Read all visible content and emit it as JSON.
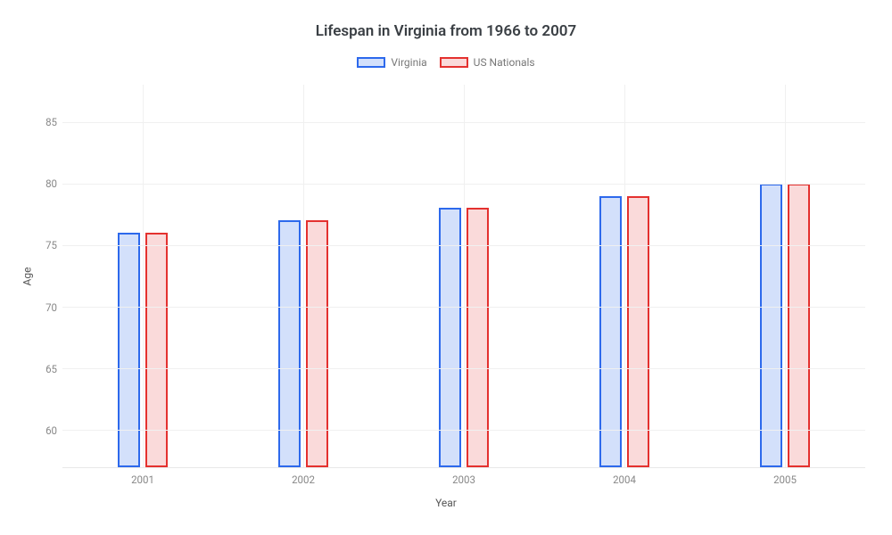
{
  "chart": {
    "type": "bar",
    "title": "Lifespan in Virginia from 1966 to 2007",
    "title_fontsize": 17,
    "title_color": "#3a3f44",
    "background_color": "#ffffff",
    "grid_color": "#f0f0f0",
    "axis_text_color": "#888888",
    "label_color": "#555555",
    "categories": [
      "2001",
      "2002",
      "2003",
      "2004",
      "2005"
    ],
    "x_axis_label": "Year",
    "y_axis_label": "Age",
    "label_fontsize": 12,
    "tick_fontsize": 11.5,
    "y_min": 57,
    "y_max": 88,
    "y_ticks": [
      60,
      65,
      70,
      75,
      80,
      85
    ],
    "bar_width_pct": 2.8,
    "bar_gap_pct": 0.6,
    "group_spacing_pct": 20,
    "group_start_pct": 10,
    "series": [
      {
        "name": "Virginia",
        "border_color": "#2d69ec",
        "fill_color": "#d3e0fb",
        "values": [
          76,
          77,
          78,
          79,
          80
        ]
      },
      {
        "name": "US Nationals",
        "border_color": "#e4312f",
        "fill_color": "#fadada",
        "values": [
          76,
          77,
          78,
          79,
          80
        ]
      }
    ],
    "legend_swatch_width": 32,
    "legend_swatch_height": 12,
    "legend_fontsize": 12,
    "legend_text_color": "#777777"
  }
}
